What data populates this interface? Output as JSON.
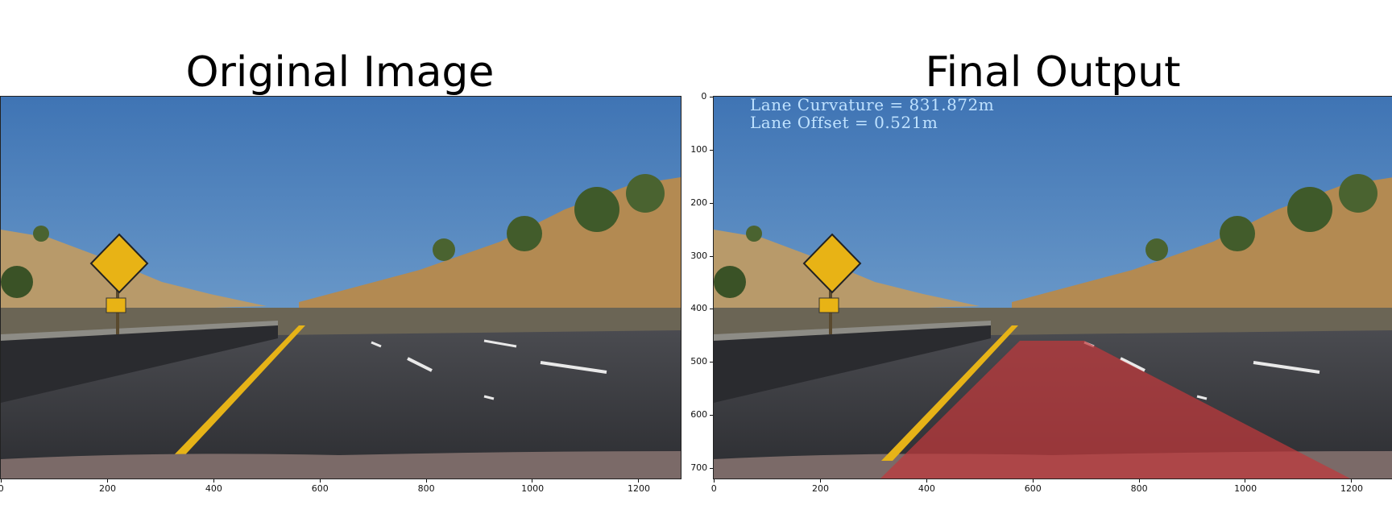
{
  "panels": [
    {
      "title": "Original Image"
    },
    {
      "title": "Final Output"
    }
  ],
  "x_axis": {
    "ticks": [
      "0",
      "200",
      "400",
      "600",
      "800",
      "1000",
      "1200"
    ]
  },
  "y_axis": {
    "ticks": [
      "0",
      "100",
      "200",
      "300",
      "400",
      "500",
      "600",
      "700"
    ]
  },
  "overlay": {
    "curvature": "Lane Curvature = 831.872m",
    "offset": "Lane Offset = 0.521m"
  },
  "colors": {
    "sky_top": "#3f74b4",
    "sky_bottom": "#8ab4d8",
    "road": "#3a3b40",
    "lane_fill": "#c0393b",
    "yellow_line": "#e6b317",
    "hill": "#b58f5a",
    "overlay_text": "#bfe2ff"
  }
}
